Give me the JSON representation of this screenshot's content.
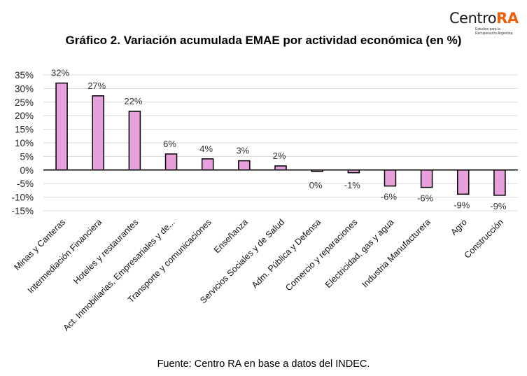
{
  "logo": {
    "name_prefix": "Centro",
    "name_accent": "RA",
    "tagline_line1": "Estudios para la",
    "tagline_line2": "Recuperación Argentina",
    "accent_color": "#f25c0a"
  },
  "footer": "Fuente: Centro RA en base a datos del INDEC.",
  "chart_data": {
    "type": "bar",
    "title": "Gráfico 2. Variación acumulada EMAE por actividad económica (en %)",
    "xlabel": "",
    "ylabel": "",
    "ylim": [
      -15,
      35
    ],
    "yticks": [
      35,
      30,
      25,
      20,
      15,
      10,
      5,
      0,
      -5,
      -10,
      -15
    ],
    "ytick_labels": [
      "35%",
      "30%",
      "25%",
      "20%",
      "15%",
      "10%",
      "5%",
      "0%",
      "-5%",
      "-10%",
      "-15%"
    ],
    "grid": true,
    "bar_color": "#e6a0dc",
    "bar_edge_color": "#000000",
    "categories": [
      "Minas y Canteras",
      "Intermediación Financiera",
      "Hoteles y restaurantes",
      "Act. Inmobiliarias, Empresariales y de...",
      "Transporte y comunicaciones",
      "Enseñanza",
      "Servicios Sociales y de Salud",
      "Adm. Pública y Defensa",
      "Comercio y reparaciones",
      "Electricidad, gas y agua",
      "Industria Manufacturera",
      "Agro",
      "Construcción"
    ],
    "values": [
      32.0,
      27.3,
      21.6,
      5.9,
      4.1,
      3.4,
      1.5,
      -0.5,
      -1.0,
      -5.9,
      -6.4,
      -8.9,
      -9.3
    ],
    "data_labels": [
      "32%",
      "27%",
      "22%",
      "6%",
      "4%",
      "3%",
      "2%",
      "0%",
      "-1%",
      "-6%",
      "-6%",
      "-9%",
      "-9%"
    ]
  }
}
